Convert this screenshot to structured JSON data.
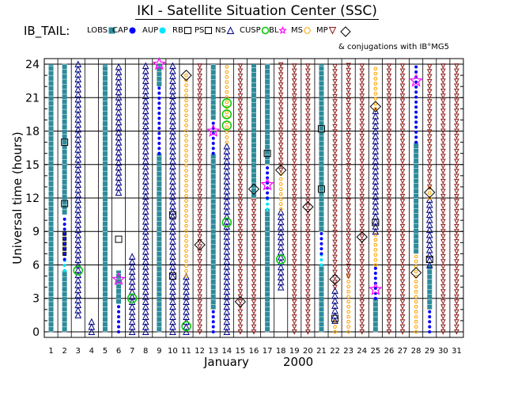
{
  "chart_data": {
    "type": "scatter",
    "title": "IKI - Satellite Situation Center (SSC)",
    "subtitle": "IB_TAIL:",
    "note": "& conjugations with IB°MG5",
    "xlabel": "January",
    "xlabel_year": "2000",
    "ylabel": "Universal time (hours)",
    "xlim": [
      0.5,
      31.5
    ],
    "ylim": [
      -0.5,
      24.5
    ],
    "xticks": [
      "1",
      "2",
      "3",
      "4",
      "5",
      "6",
      "7",
      "8",
      "9",
      "10",
      "11",
      "12",
      "13",
      "14",
      "15",
      "16",
      "17",
      "18",
      "19",
      "20",
      "21",
      "22",
      "23",
      "24",
      "25",
      "26",
      "27",
      "28",
      "29",
      "30",
      "31"
    ],
    "yticks": [
      0,
      3,
      6,
      9,
      12,
      15,
      18,
      21,
      24
    ],
    "grid": true,
    "legend_position": "top",
    "legend": [
      {
        "key": "LOBS",
        "label": "LOBS",
        "color": "#2e8b9a",
        "marker": "square"
      },
      {
        "key": "CAP",
        "label": "CAP",
        "color": "#0000ff",
        "marker": "dot"
      },
      {
        "key": "AUP",
        "label": "AUP",
        "color": "#00e5ff",
        "marker": "dot"
      },
      {
        "key": "RB",
        "label": "RB",
        "color": "#000000",
        "marker": "open-square"
      },
      {
        "key": "PS",
        "label": "PS",
        "color": "#000000",
        "marker": "open-square"
      },
      {
        "key": "NS",
        "label": "NS",
        "color": "#000080",
        "marker": "triangle"
      },
      {
        "key": "CUSP",
        "label": "CUSP",
        "color": "#00cc00",
        "marker": "circle"
      },
      {
        "key": "BL",
        "label": "BL",
        "color": "#ff00ff",
        "marker": "star"
      },
      {
        "key": "MS",
        "label": "MS",
        "color": "#ffa500",
        "marker": "hexagon"
      },
      {
        "key": "MP",
        "label": "MP",
        "color": "#8b1a1a",
        "marker": "down-triangle"
      },
      {
        "key": "CONJ",
        "label": "",
        "color": "#000000",
        "marker": "diamond"
      }
    ],
    "colors": {
      "LOBS": "#2e8b9a",
      "CAP": "#0000ff",
      "AUP": "#00e5ff",
      "NS": "#000080",
      "CUSP": "#00cc00",
      "BL": "#ff00ff",
      "MS": "#ffa500",
      "MP": "#8b1a1a",
      "RB": "#000000",
      "PS": "#000000",
      "CONJ": "#000000"
    },
    "segments": [
      {
        "day": 1,
        "region": "LOBS",
        "start": 0,
        "end": 24
      },
      {
        "day": 2,
        "region": "LOBS",
        "start": 0,
        "end": 5.5
      },
      {
        "day": 2,
        "region": "AUP",
        "start": 5.5,
        "end": 6.5
      },
      {
        "day": 2,
        "region": "CAP",
        "start": 6.5,
        "end": 10.5
      },
      {
        "day": 2,
        "region": "PS",
        "start": 7,
        "end": 9
      },
      {
        "day": 2,
        "region": "LOBS",
        "start": 10.5,
        "end": 24
      },
      {
        "day": 3,
        "region": "NS",
        "start": 1.5,
        "end": 24
      },
      {
        "day": 4,
        "region": "NS",
        "start": 0,
        "end": 1
      },
      {
        "day": 5,
        "region": "LOBS",
        "start": 0,
        "end": 24
      },
      {
        "day": 6,
        "region": "CAP",
        "start": 0,
        "end": 3
      },
      {
        "day": 6,
        "region": "LOBS",
        "start": 2.5,
        "end": 5.5
      },
      {
        "day": 6,
        "region": "NS",
        "start": 12.5,
        "end": 24
      },
      {
        "day": 7,
        "region": "NS",
        "start": 0,
        "end": 7
      },
      {
        "day": 8,
        "region": "NS",
        "start": 0,
        "end": 24
      },
      {
        "day": 9,
        "region": "LOBS",
        "start": 0,
        "end": 16
      },
      {
        "day": 9,
        "region": "CAP",
        "start": 16,
        "end": 22
      },
      {
        "day": 9,
        "region": "LOBS",
        "start": 22,
        "end": 24
      },
      {
        "day": 10,
        "region": "NS",
        "start": 0,
        "end": 24
      },
      {
        "day": 11,
        "region": "NS",
        "start": 0,
        "end": 5
      },
      {
        "day": 11,
        "region": "MS",
        "start": 5,
        "end": 23
      },
      {
        "day": 12,
        "region": "MP",
        "start": 0,
        "end": 24
      },
      {
        "day": 13,
        "region": "CAP",
        "start": 0,
        "end": 2
      },
      {
        "day": 13,
        "region": "LOBS",
        "start": 2,
        "end": 16
      },
      {
        "day": 13,
        "region": "CAP",
        "start": 16,
        "end": 19
      },
      {
        "day": 13,
        "region": "LOBS",
        "start": 19,
        "end": 24
      },
      {
        "day": 14,
        "region": "NS",
        "start": 0,
        "end": 17
      },
      {
        "day": 14,
        "region": "MS",
        "start": 17,
        "end": 24
      },
      {
        "day": 15,
        "region": "MP",
        "start": 0,
        "end": 24
      },
      {
        "day": 16,
        "region": "MP",
        "start": 0,
        "end": 12
      },
      {
        "day": 16,
        "region": "LOBS",
        "start": 12,
        "end": 24
      },
      {
        "day": 17,
        "region": "LOBS",
        "start": 0,
        "end": 11
      },
      {
        "day": 17,
        "region": "AUP",
        "start": 11,
        "end": 12
      },
      {
        "day": 17,
        "region": "CAP",
        "start": 12,
        "end": 15
      },
      {
        "day": 17,
        "region": "LOBS",
        "start": 15,
        "end": 24
      },
      {
        "day": 18,
        "region": "NS",
        "start": 4,
        "end": 11
      },
      {
        "day": 18,
        "region": "MS",
        "start": 11,
        "end": 14.5
      },
      {
        "day": 18,
        "region": "MP",
        "start": 14.5,
        "end": 24
      },
      {
        "day": 19,
        "region": "MP",
        "start": 0,
        "end": 24
      },
      {
        "day": 20,
        "region": "MP",
        "start": 0,
        "end": 24
      },
      {
        "day": 21,
        "region": "LOBS",
        "start": 0,
        "end": 6
      },
      {
        "day": 21,
        "region": "AUP",
        "start": 6,
        "end": 7
      },
      {
        "day": 21,
        "region": "CAP",
        "start": 7,
        "end": 9
      },
      {
        "day": 21,
        "region": "LOBS",
        "start": 9,
        "end": 24
      },
      {
        "day": 22,
        "region": "MS",
        "start": 0,
        "end": 1
      },
      {
        "day": 22,
        "region": "NS",
        "start": 1,
        "end": 4
      },
      {
        "day": 22,
        "region": "MP",
        "start": 4,
        "end": 24
      },
      {
        "day": 23,
        "region": "MS",
        "start": 0,
        "end": 5
      },
      {
        "day": 23,
        "region": "MP",
        "start": 5,
        "end": 24
      },
      {
        "day": 24,
        "region": "MP",
        "start": 0,
        "end": 24
      },
      {
        "day": 25,
        "region": "LOBS",
        "start": 0,
        "end": 3
      },
      {
        "day": 25,
        "region": "CAP",
        "start": 3,
        "end": 6
      },
      {
        "day": 25,
        "region": "MS",
        "start": 6,
        "end": 9
      },
      {
        "day": 25,
        "region": "NS",
        "start": 9,
        "end": 20
      },
      {
        "day": 25,
        "region": "MS",
        "start": 20,
        "end": 24
      },
      {
        "day": 26,
        "region": "MP",
        "start": 0,
        "end": 24
      },
      {
        "day": 27,
        "region": "MP",
        "start": 0,
        "end": 24
      },
      {
        "day": 28,
        "region": "MS",
        "start": 0,
        "end": 7
      },
      {
        "day": 28,
        "region": "LOBS",
        "start": 7,
        "end": 17
      },
      {
        "day": 28,
        "region": "CAP",
        "start": 17,
        "end": 24
      },
      {
        "day": 29,
        "region": "CAP",
        "start": 0,
        "end": 2
      },
      {
        "day": 29,
        "region": "LOBS",
        "start": 2,
        "end": 6
      },
      {
        "day": 29,
        "region": "NS",
        "start": 6,
        "end": 12
      },
      {
        "day": 29,
        "region": "MS",
        "start": 12,
        "end": 13
      },
      {
        "day": 29,
        "region": "MP",
        "start": 13,
        "end": 24
      },
      {
        "day": 30,
        "region": "MP",
        "start": 0,
        "end": 24
      },
      {
        "day": 31,
        "region": "MP",
        "start": 0,
        "end": 24
      }
    ],
    "points": [
      {
        "day": 2,
        "region": "RB",
        "time": 17
      },
      {
        "day": 2,
        "region": "RB",
        "time": 11.5
      },
      {
        "day": 3,
        "region": "CUSP",
        "time": 5.5
      },
      {
        "day": 6,
        "region": "RB",
        "time": 8.3
      },
      {
        "day": 6,
        "region": "BL",
        "time": 4.7
      },
      {
        "day": 7,
        "region": "CUSP",
        "time": 3
      },
      {
        "day": 9,
        "region": "BL",
        "time": 24
      },
      {
        "day": 10,
        "region": "RB",
        "time": 10.5
      },
      {
        "day": 10,
        "region": "RB",
        "time": 5
      },
      {
        "day": 11,
        "region": "CONJ",
        "time": 23
      },
      {
        "day": 11,
        "region": "CUSP",
        "time": 0.5
      },
      {
        "day": 12,
        "region": "CONJ",
        "time": 7.8
      },
      {
        "day": 13,
        "region": "BL",
        "time": 18
      },
      {
        "day": 14,
        "region": "CUSP",
        "time": 20.5
      },
      {
        "day": 14,
        "region": "CUSP",
        "time": 19.5
      },
      {
        "day": 14,
        "region": "CUSP",
        "time": 18.5
      },
      {
        "day": 14,
        "region": "CUSP",
        "time": 9.8
      },
      {
        "day": 15,
        "region": "CONJ",
        "time": 2.7
      },
      {
        "day": 16,
        "region": "CONJ",
        "time": 12.8
      },
      {
        "day": 17,
        "region": "RB",
        "time": 16
      },
      {
        "day": 17,
        "region": "BL",
        "time": 13.2
      },
      {
        "day": 18,
        "region": "CONJ",
        "time": 14.5
      },
      {
        "day": 18,
        "region": "CUSP",
        "time": 6.5
      },
      {
        "day": 20,
        "region": "CONJ",
        "time": 11.2
      },
      {
        "day": 21,
        "region": "RB",
        "time": 18.2
      },
      {
        "day": 21,
        "region": "RB",
        "time": 12.8
      },
      {
        "day": 22,
        "region": "CONJ",
        "time": 4.7
      },
      {
        "day": 22,
        "region": "RB",
        "time": 1.2
      },
      {
        "day": 24,
        "region": "CONJ",
        "time": 8.5
      },
      {
        "day": 25,
        "region": "CONJ",
        "time": 20.2
      },
      {
        "day": 25,
        "region": "RB",
        "time": 9.8
      },
      {
        "day": 25,
        "region": "BL",
        "time": 3.8
      },
      {
        "day": 28,
        "region": "BL",
        "time": 22.5
      },
      {
        "day": 28,
        "region": "CONJ",
        "time": 5.3
      },
      {
        "day": 29,
        "region": "CONJ",
        "time": 12.5
      },
      {
        "day": 29,
        "region": "RB",
        "time": 6.5
      }
    ]
  }
}
